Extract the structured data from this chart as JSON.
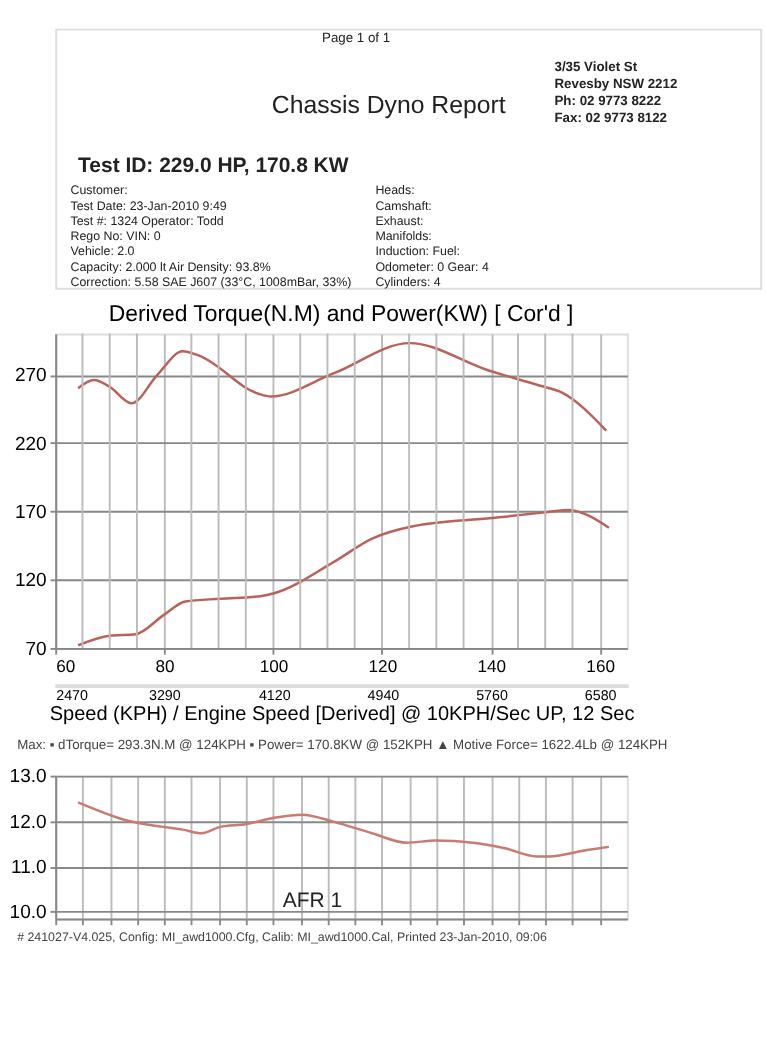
{
  "chart_data": [
    {
      "type": "other",
      "title": "Chassis Dyno Report",
      "subtitle": "Test ID: 229.0 HP, 170.8 KW",
      "annotations": [
        "Page 1 of 1",
        "3/35 Violet St",
        "Revesby NSW 2212",
        "Ph: 02 9773 8222",
        "Fax: 02 9773 8122",
        "Customer:",
        "Heads:",
        "Test Date: 23-Jan-2010 9:49",
        "Camshaft:",
        "Test #: 1324     Operator: Todd",
        "Exhaust:",
        "Rego No:               VIN: 0",
        "Manifolds:",
        "Vehicle: 2.0",
        "Induction:                          Fuel:",
        "Capacity: 2.000 lt     Air Density: 93.8%",
        "Odometer: 0                        Gear: 4",
        "Correction: 5.58 SAE J607  (33°C, 1008mBar, 33%)",
        "Cylinders: 4"
      ]
    },
    {
      "type": "line",
      "title": "Derived Torque(N.M) and Power(KW)     [ Cor'd ]",
      "xlabel": "Speed (KPH) / Engine Speed [Derived] @ 10KPH/Sec UP, 12 Sec",
      "xlim": [
        60,
        165
      ],
      "ylim": [
        70,
        300
      ],
      "xticks": [
        60,
        {
          "value": 65,
          "label": null
        },
        {
          "value": 70,
          "label": null
        },
        {
          "value": 75,
          "label": null
        },
        80,
        {
          "value": 85,
          "label": null
        },
        {
          "value": 90,
          "label": null
        },
        {
          "value": 95,
          "label": null
        },
        100,
        {
          "value": 105,
          "label": null
        },
        {
          "value": 110,
          "label": null
        },
        {
          "value": 115,
          "label": null
        },
        120,
        {
          "value": 125,
          "label": null
        },
        {
          "value": 130,
          "label": null
        },
        {
          "value": 135,
          "label": null
        },
        140,
        {
          "value": 145,
          "label": null
        },
        {
          "value": 150,
          "label": null
        },
        {
          "value": 155,
          "label": null
        },
        160
      ],
      "x2lim": [
        2470,
        6785.5
      ],
      "x2ticks": [
        2470,
        3290,
        4120,
        4940,
        5760,
        6580
      ],
      "yticks": [
        70,
        120,
        170,
        220,
        270
      ],
      "grid": true,
      "line_style": "solid",
      "annotations": [
        "Max:  ▪ dTorque= 293.3N.M @ 124KPH  ▪ Power= 170.8KW @ 152KPH   ▲ Motive Force= 1622.4Lb @ 124KPH"
      ],
      "series": [
        {
          "color": "#b9625b",
          "x": [
            64.2,
            67.1,
            70,
            74,
            78.8,
            83.4,
            86.3,
            97.3,
            99.6,
            111.2,
            125.1,
            139.6,
            148.9,
            153,
            161.2
          ],
          "values": [
            260,
            266,
            261,
            249,
            270,
            287,
            284,
            256,
            254,
            271,
            293,
            273,
            262,
            257,
            229
          ]
        },
        {
          "color": "#b9625b",
          "x": [
            64.2,
            70,
            74.7,
            79.9,
            83.9,
            90.3,
            97.9,
            100.2,
            111.2,
            118.2,
            125.7,
            140.2,
            149.5,
            154.1,
            161.7
          ],
          "values": [
            72,
            79,
            80,
            94,
            104,
            106,
            108,
            110,
            133,
            150,
            159,
            165,
            169,
            171,
            158
          ]
        }
      ]
    },
    {
      "type": "line",
      "xlim": [
        60,
        165
      ],
      "ylim": [
        9.85,
        13.0
      ],
      "tick_labels": "y",
      "grid": true,
      "line_style": "solid",
      "xticks": [
        60,
        65,
        70,
        75,
        80,
        85,
        90,
        95,
        100,
        105,
        110,
        115,
        120,
        125,
        130,
        135,
        140,
        145,
        150,
        155,
        160
      ],
      "yticks": [
        {
          "value": 10,
          "label": "10.0"
        },
        {
          "value": 11,
          "label": "11.0"
        },
        {
          "value": 12,
          "label": "12.0"
        },
        {
          "value": 13,
          "label": "13.0"
        }
      ],
      "annotations": [
        "# 241027-V4.025, Config: MI_awd1000.Cfg, Calib: MI_awd1000.Cal, Printed 23-Jan-2010, 09:06"
      ],
      "series": [
        {
          "name": "AFR  1",
          "color": "#c97a72",
          "x": [
            64.2,
            73.5,
            79.9,
            83.4,
            86.9,
            90.3,
            95,
            100.2,
            105.4,
            111.2,
            118.2,
            124.6,
            129.8,
            136.8,
            142.6,
            148.4,
            150.7,
            157.7,
            161.7
          ],
          "values": [
            12.41,
            12.0,
            11.87,
            11.81,
            11.73,
            11.87,
            11.93,
            12.07,
            12.14,
            11.98,
            11.73,
            11.52,
            11.57,
            11.52,
            11.4,
            11.22,
            11.22,
            11.36,
            11.43
          ]
        }
      ]
    }
  ]
}
